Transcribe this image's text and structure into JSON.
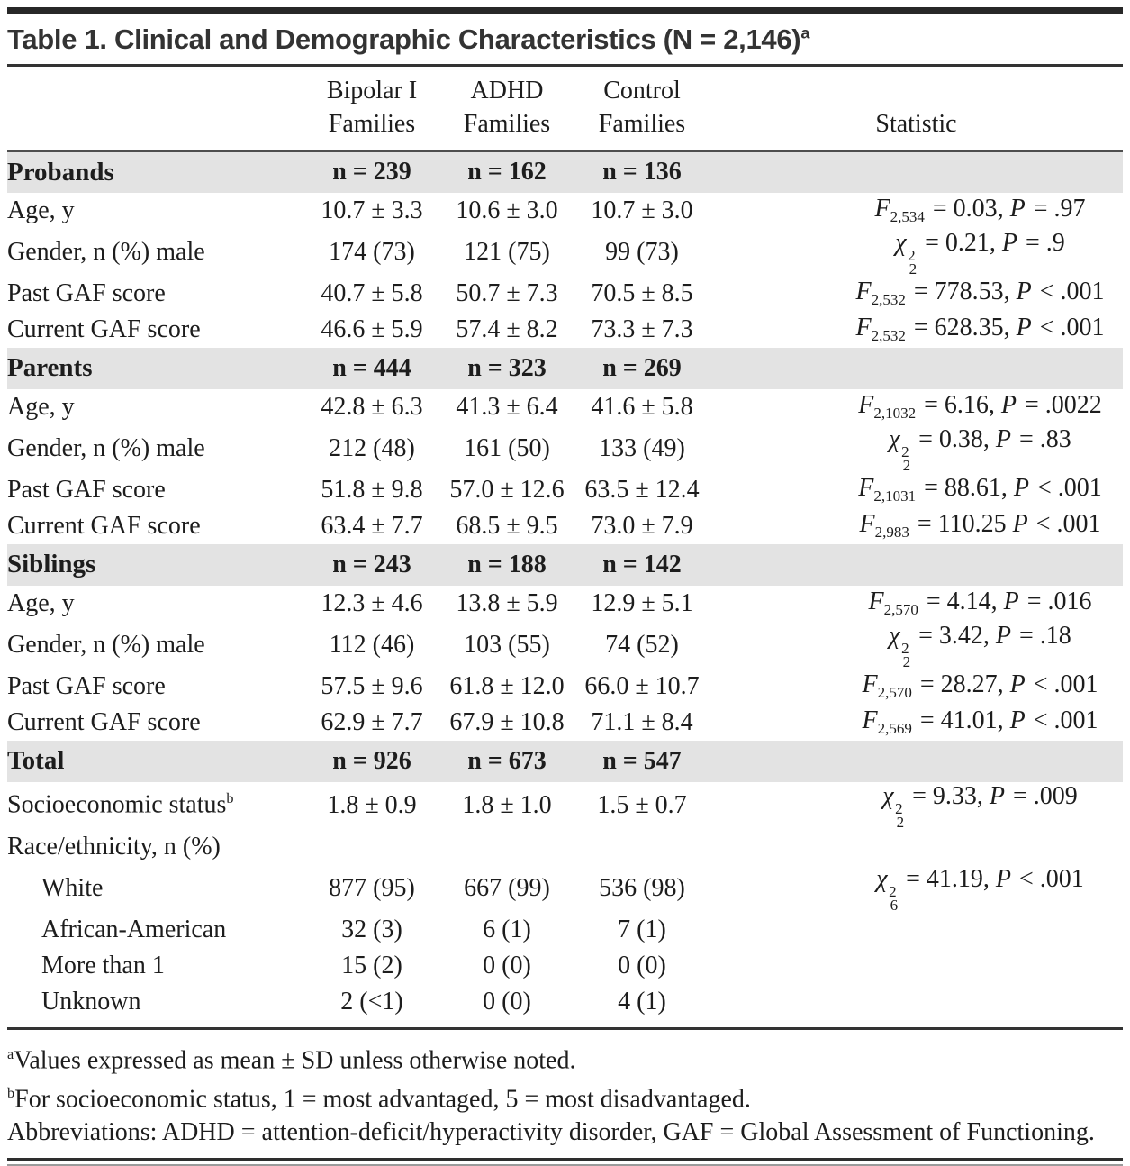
{
  "title": {
    "text": "Table 1. Clinical and Demographic Characteristics (N = 2,146)",
    "sup": "a"
  },
  "table": {
    "headers": [
      {
        "l1": "",
        "l2": ""
      },
      {
        "l1": "Bipolar I",
        "l2": "Families"
      },
      {
        "l1": "ADHD",
        "l2": "Families"
      },
      {
        "l1": "Control",
        "l2": "Families"
      },
      {
        "l1": "",
        "l2": "Statistic"
      }
    ],
    "sections": [
      {
        "name": "Probands",
        "counts": [
          "n = 239",
          "n = 162",
          "n = 136"
        ],
        "rows": [
          {
            "label": "Age, y",
            "values": [
              "10.7 ± 3.3",
              "10.6 ± 3.0",
              "10.7 ± 3.0"
            ],
            "stat": {
              "sym": "F",
              "sub": "2,534",
              "eq": "= 0.03,",
              "psym": "P",
              "pval": "= .97"
            }
          },
          {
            "label": "Gender, n (%) male",
            "values": [
              "174 (73)",
              "121 (75)",
              "99 (73)"
            ],
            "stat": {
              "sym": "χ",
              "sup": "2",
              "sub": "2",
              "eq": "= 0.21,",
              "psym": "P",
              "pval": "= .9"
            }
          },
          {
            "label": "Past GAF score",
            "values": [
              "40.7 ± 5.8",
              "50.7 ± 7.3",
              "70.5 ± 8.5"
            ],
            "stat": {
              "sym": "F",
              "sub": "2,532",
              "eq": "= 778.53,",
              "psym": "P",
              "pval": "< .001"
            }
          },
          {
            "label": "Current GAF score",
            "values": [
              "46.6 ± 5.9",
              "57.4 ± 8.2",
              "73.3 ± 7.3"
            ],
            "stat": {
              "sym": "F",
              "sub": "2,532",
              "eq": "= 628.35,",
              "psym": "P",
              "pval": "< .001"
            }
          }
        ]
      },
      {
        "name": "Parents",
        "counts": [
          "n = 444",
          "n = 323",
          "n = 269"
        ],
        "rows": [
          {
            "label": "Age, y",
            "values": [
              "42.8 ± 6.3",
              "41.3 ± 6.4",
              "41.6 ± 5.8"
            ],
            "stat": {
              "sym": "F",
              "sub": "2,1032",
              "eq": "= 6.16,",
              "psym": "P",
              "pval": "= .0022"
            }
          },
          {
            "label": "Gender, n (%) male",
            "values": [
              "212 (48)",
              "161 (50)",
              "133 (49)"
            ],
            "stat": {
              "sym": "χ",
              "sup": "2",
              "sub": "2",
              "eq": "= 0.38,",
              "psym": "P",
              "pval": "= .83"
            }
          },
          {
            "label": "Past GAF score",
            "values": [
              "51.8 ± 9.8",
              "57.0 ± 12.6",
              "63.5 ± 12.4"
            ],
            "stat": {
              "sym": "F",
              "sub": "2,1031",
              "eq": "= 88.61,",
              "psym": "P",
              "pval": "< .001"
            }
          },
          {
            "label": "Current GAF score",
            "values": [
              "63.4 ± 7.7",
              "68.5 ± 9.5",
              "73.0 ± 7.9"
            ],
            "stat": {
              "sym": "F",
              "sub": "2,983",
              "eq": "= 110.25",
              "psym": "P",
              "pval": "< .001"
            }
          }
        ]
      },
      {
        "name": "Siblings",
        "counts": [
          "n = 243",
          "n = 188",
          "n = 142"
        ],
        "rows": [
          {
            "label": "Age, y",
            "values": [
              "12.3 ± 4.6",
              "13.8 ± 5.9",
              "12.9 ± 5.1"
            ],
            "stat": {
              "sym": "F",
              "sub": "2,570",
              "eq": "= 4.14,",
              "psym": "P",
              "pval": "= .016"
            }
          },
          {
            "label": "Gender, n (%) male",
            "values": [
              "112 (46)",
              "103 (55)",
              "74 (52)"
            ],
            "stat": {
              "sym": "χ",
              "sup": "2",
              "sub": "2",
              "eq": "= 3.42,",
              "psym": "P",
              "pval": "= .18"
            }
          },
          {
            "label": "Past GAF score",
            "values": [
              "57.5 ± 9.6",
              "61.8 ± 12.0",
              "66.0 ± 10.7"
            ],
            "stat": {
              "sym": "F",
              "sub": "2,570",
              "eq": "= 28.27,",
              "psym": "P",
              "pval": "< .001"
            }
          },
          {
            "label": "Current GAF score",
            "values": [
              "62.9 ± 7.7",
              "67.9 ± 10.8",
              "71.1 ± 8.4"
            ],
            "stat": {
              "sym": "F",
              "sub": "2,569",
              "eq": "= 41.01,",
              "psym": "P",
              "pval": "< .001"
            }
          }
        ]
      },
      {
        "name": "Total",
        "counts": [
          "n = 926",
          "n = 673",
          "n = 547"
        ],
        "rows": [
          {
            "label": "Socioeconomic status",
            "label_sup": "b",
            "values": [
              "1.8 ± 0.9",
              "1.8 ± 1.0",
              "1.5 ± 0.7"
            ],
            "stat": {
              "sym": "χ",
              "sup": "2",
              "sub": "2",
              "eq": "= 9.33,",
              "psym": "P",
              "pval": "= .009"
            }
          },
          {
            "label": "Race/ethnicity, n (%)",
            "values": [
              "",
              "",
              ""
            ],
            "stat": null
          },
          {
            "label": "White",
            "indent": true,
            "values": [
              "877 (95)",
              "667 (99)",
              "536 (98)"
            ],
            "stat": {
              "sym": "χ",
              "sup": "2",
              "sub": "6",
              "eq": "= 41.19,",
              "psym": "P",
              "pval": "< .001"
            }
          },
          {
            "label": "African-American",
            "indent": true,
            "values": [
              "32 (3)",
              "6 (1)",
              "7 (1)"
            ],
            "stat": null
          },
          {
            "label": "More than 1",
            "indent": true,
            "values": [
              "15 (2)",
              "0 (0)",
              "0 (0)"
            ],
            "stat": null
          },
          {
            "label": "Unknown",
            "indent": true,
            "values": [
              "2 (<1)",
              "0 (0)",
              "4 (1)"
            ],
            "stat": null
          }
        ]
      }
    ]
  },
  "footnotes": [
    {
      "sup": "a",
      "text": "Values expressed as mean ± SD unless otherwise noted."
    },
    {
      "sup": "b",
      "text": "For socioeconomic status, 1 = most advantaged, 5 = most disadvantaged."
    },
    {
      "sup": "",
      "text": "Abbreviations: ADHD = attention-deficit/hyperactivity disorder, GAF = Global Assessment of Functioning."
    }
  ],
  "colors": {
    "band_background": "#e3e3e3",
    "rule_dark": "#2e2e2e",
    "text": "#1d1d1d"
  }
}
